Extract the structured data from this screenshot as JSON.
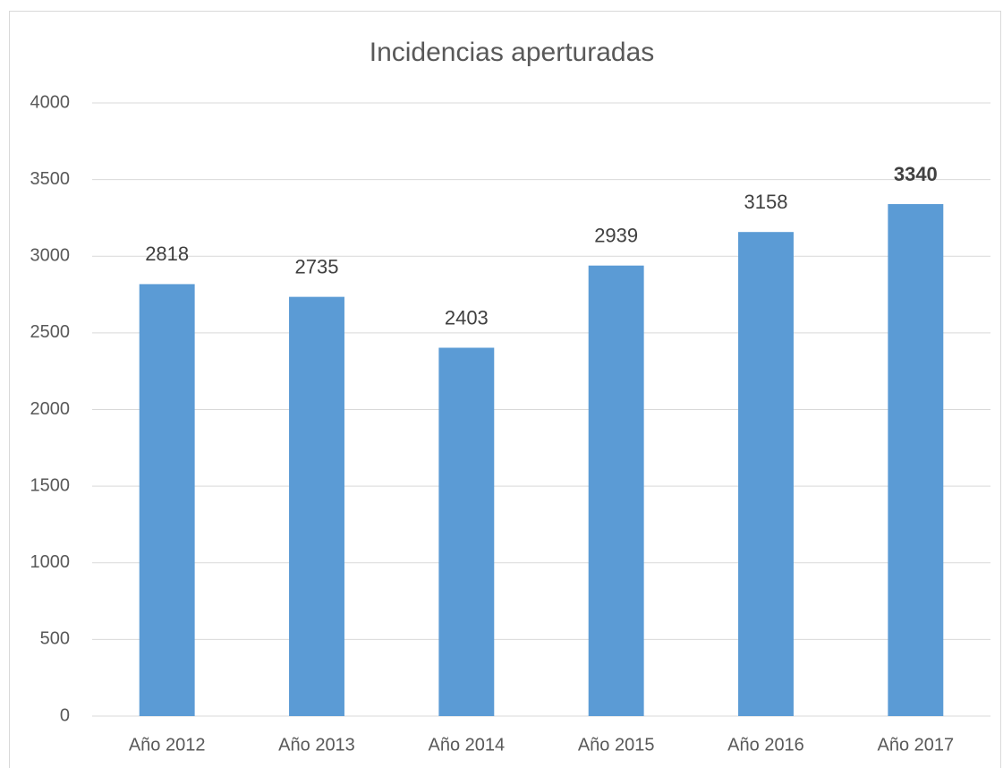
{
  "chart_data": {
    "type": "bar",
    "title": "Incidencias aperturadas",
    "categories": [
      "Año 2012",
      "Año 2013",
      "Año 2014",
      "Año 2015",
      "Año 2016",
      "Año 2017"
    ],
    "values": [
      2818,
      2735,
      2403,
      2939,
      3158,
      3340
    ],
    "label_bold": [
      false,
      false,
      false,
      false,
      false,
      true
    ],
    "color": "#5b9bd5",
    "ylim": [
      0,
      4000
    ],
    "yticks": [
      0,
      500,
      1000,
      1500,
      2000,
      2500,
      3000,
      3500,
      4000
    ],
    "grid": true
  }
}
